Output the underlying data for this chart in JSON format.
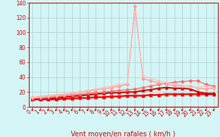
{
  "x": [
    0,
    1,
    2,
    3,
    4,
    5,
    6,
    7,
    8,
    9,
    10,
    11,
    12,
    13,
    14,
    15,
    16,
    17,
    18,
    19,
    20,
    21,
    22,
    23
  ],
  "series": [
    {
      "color": "#ff0000",
      "linewidth": 1.8,
      "marker": "s",
      "markersize": 2.5,
      "values": [
        10,
        10,
        10,
        10,
        11,
        11,
        12,
        12,
        13,
        13,
        14,
        14,
        15,
        15,
        15,
        16,
        16,
        17,
        17,
        17,
        17,
        17,
        17,
        17
      ]
    },
    {
      "color": "#cc0000",
      "linewidth": 1.5,
      "marker": "^",
      "markersize": 3,
      "values": [
        10,
        10,
        11,
        12,
        13,
        14,
        15,
        16,
        17,
        18,
        19,
        19,
        20,
        20,
        22,
        23,
        25,
        26,
        25,
        25,
        24,
        20,
        18,
        18
      ]
    },
    {
      "color": "#ff6666",
      "linewidth": 1.0,
      "marker": "D",
      "markersize": 2.5,
      "values": [
        11,
        12,
        13,
        14,
        15,
        16,
        17,
        18,
        19,
        20,
        21,
        22,
        23,
        24,
        26,
        28,
        30,
        32,
        33,
        34,
        35,
        35,
        30,
        28
      ]
    },
    {
      "color": "#ff9999",
      "linewidth": 1.0,
      "marker": "D",
      "markersize": 2.5,
      "values": [
        13,
        14,
        15,
        16,
        17,
        18,
        20,
        21,
        23,
        24,
        26,
        28,
        30,
        135,
        38,
        35,
        32,
        30,
        29,
        28,
        28,
        25,
        24,
        25
      ]
    },
    {
      "color": "#ffbbbb",
      "linewidth": 0.8,
      "marker": "D",
      "markersize": 2.0,
      "values": [
        13,
        14,
        15,
        16,
        17,
        19,
        20,
        22,
        24,
        26,
        28,
        30,
        32,
        128,
        42,
        38,
        35,
        33,
        31,
        29,
        27,
        26,
        28,
        26
      ]
    }
  ],
  "ylim": [
    0,
    140
  ],
  "yticks": [
    0,
    20,
    40,
    60,
    80,
    100,
    120,
    140
  ],
  "xlabel": "Vent moyen/en rafales ( km/h )",
  "xlabel_color": "#cc0000",
  "xlabel_fontsize": 7,
  "tick_color": "#cc0000",
  "tick_fontsize": 5.5,
  "background_color": "#d4f5f5",
  "grid_color": "#aacccc",
  "arrow_color": "#cc0000",
  "axis_color": "#cc0000"
}
